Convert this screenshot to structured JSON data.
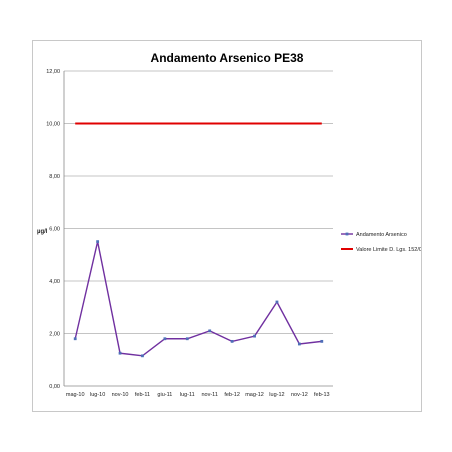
{
  "chart_data": {
    "type": "line",
    "title": "Andamento Arsenico PE38",
    "xlabel": "",
    "ylabel": "µg/l",
    "ylim": [
      0,
      12
    ],
    "yticks": [
      "0,00",
      "2,00",
      "4,00",
      "6,00",
      "8,00",
      "10,00",
      "12,00"
    ],
    "ytick_values": [
      0,
      2,
      4,
      6,
      8,
      10,
      12
    ],
    "categories": [
      "mag-10",
      "lug-10",
      "nov-10",
      "feb-11",
      "giu-11",
      "lug-11",
      "nov-11",
      "feb-12",
      "mag-12",
      "lug-12",
      "nov-12",
      "feb-13"
    ],
    "grid": true,
    "legend_position": "right",
    "series": [
      {
        "name": "Andamento Arsenico",
        "color": "#7030a0",
        "marker_color": "#4f6fb8",
        "values": [
          1.8,
          5.5,
          1.25,
          1.15,
          1.8,
          1.8,
          2.1,
          1.7,
          1.9,
          3.2,
          1.6,
          1.7
        ]
      },
      {
        "name": "Valore Limite D. Lgs. 152/06",
        "color": "#e00000",
        "values": [
          10,
          10,
          10,
          10,
          10,
          10,
          10,
          10,
          10,
          10,
          10,
          10
        ]
      }
    ]
  }
}
